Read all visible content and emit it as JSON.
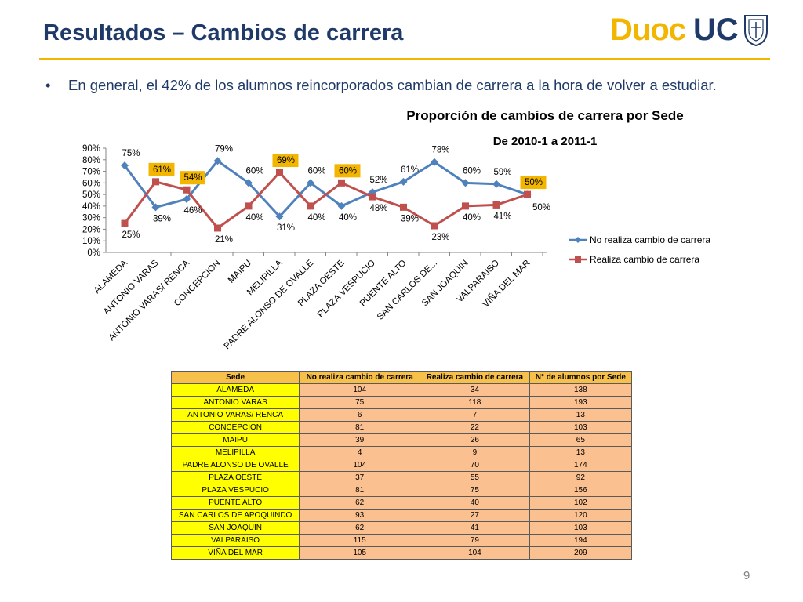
{
  "slide": {
    "title": "Resultados – Cambios de carrera",
    "logo": {
      "part1": "Duoc",
      "part2": "UC"
    },
    "bullet": "En general, el 42% de los alumnos reincorporados cambian de carrera a la hora de volver a estudiar.",
    "page_number": "9"
  },
  "colors": {
    "title": "#1f3a68",
    "accent": "#f3b600",
    "series1": "#4f81bd",
    "series2": "#c0504d",
    "label_highlight": "#f3b600",
    "table_header": "#f7c04a",
    "table_sede": "#ffff00",
    "table_values": "#fac090"
  },
  "chart_data": {
    "type": "line",
    "title": "Proporción de cambios de carrera por Sede",
    "subtitle": "De 2010-1 a 2011-1",
    "categories": [
      "ALAMEDA",
      "ANTONIO VARAS",
      "ANTONIO VARAS/ RENCA",
      "CONCEPCION",
      "MAIPU",
      "MELIPILLA",
      "PADRE ALONSO DE OVALLE",
      "PLAZA OESTE",
      "PLAZA VESPUCIO",
      "PUENTE ALTO",
      "SAN CARLOS DE...",
      "SAN JOAQUIN",
      "VALPARAISO",
      "VIÑA DEL MAR"
    ],
    "series": [
      {
        "name": "No realiza cambio de carrera",
        "values": [
          75,
          39,
          46,
          79,
          60,
          31,
          60,
          40,
          52,
          61,
          78,
          60,
          59,
          50
        ],
        "labels": [
          "75%",
          "39%",
          "46%",
          "79%",
          "60%",
          "31%",
          "60%",
          "40%",
          "52%",
          "61%",
          "78%",
          "60%",
          "59%",
          "50%"
        ]
      },
      {
        "name": "Realiza cambio de carrera",
        "values": [
          25,
          61,
          54,
          21,
          40,
          69,
          40,
          60,
          48,
          39,
          23,
          40,
          41,
          50
        ],
        "labels": [
          "25%",
          "61%",
          "54%",
          "21%",
          "40%",
          "69%",
          "40%",
          "60%",
          "48%",
          "39%",
          "23%",
          "40%",
          "41%",
          "50%"
        ]
      }
    ],
    "ylim": [
      0,
      90
    ],
    "yticks": [
      "0%",
      "10%",
      "20%",
      "30%",
      "40%",
      "50%",
      "60%",
      "70%",
      "80%",
      "90%"
    ],
    "legend": "right",
    "grid": false
  },
  "table": {
    "headers": [
      "Sede",
      "No realiza cambio de carrera",
      "Realiza cambio de carrera",
      "N° de alumnos por Sede"
    ],
    "rows": [
      [
        "ALAMEDA",
        "104",
        "34",
        "138"
      ],
      [
        "ANTONIO VARAS",
        "75",
        "118",
        "193"
      ],
      [
        "ANTONIO VARAS/ RENCA",
        "6",
        "7",
        "13"
      ],
      [
        "CONCEPCION",
        "81",
        "22",
        "103"
      ],
      [
        "MAIPU",
        "39",
        "26",
        "65"
      ],
      [
        "MELIPILLA",
        "4",
        "9",
        "13"
      ],
      [
        "PADRE ALONSO DE OVALLE",
        "104",
        "70",
        "174"
      ],
      [
        "PLAZA OESTE",
        "37",
        "55",
        "92"
      ],
      [
        "PLAZA VESPUCIO",
        "81",
        "75",
        "156"
      ],
      [
        "PUENTE ALTO",
        "62",
        "40",
        "102"
      ],
      [
        "SAN CARLOS DE APOQUINDO",
        "93",
        "27",
        "120"
      ],
      [
        "SAN JOAQUIN",
        "62",
        "41",
        "103"
      ],
      [
        "VALPARAISO",
        "115",
        "79",
        "194"
      ],
      [
        "VIÑA DEL MAR",
        "105",
        "104",
        "209"
      ]
    ]
  }
}
